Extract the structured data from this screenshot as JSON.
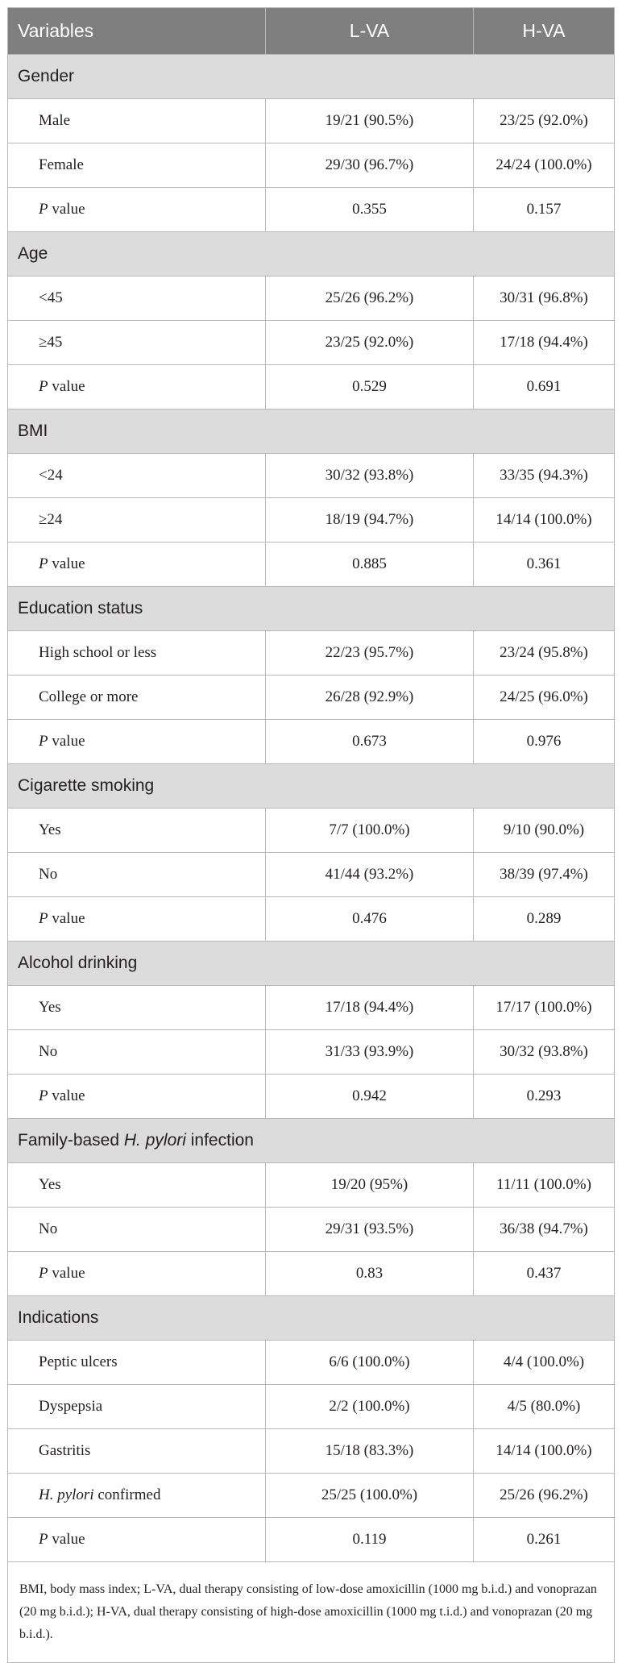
{
  "headers": [
    "Variables",
    "L-VA",
    "H-VA"
  ],
  "groups": [
    {
      "title": "Gender",
      "rows": [
        {
          "label": "Male",
          "lva": "19/21 (90.5%)",
          "hva": "23/25 (92.0%)"
        },
        {
          "label": "Female",
          "lva": "29/30 (96.7%)",
          "hva": "24/24 (100.0%)"
        },
        {
          "label_italic": "P",
          "label_rest": " value",
          "lva": "0.355",
          "hva": "0.157"
        }
      ]
    },
    {
      "title": "Age",
      "rows": [
        {
          "label": "<45",
          "lva": "25/26 (96.2%)",
          "hva": "30/31 (96.8%)"
        },
        {
          "label": "≥45",
          "lva": "23/25 (92.0%)",
          "hva": "17/18 (94.4%)"
        },
        {
          "label_italic": "P",
          "label_rest": " value",
          "lva": "0.529",
          "hva": "0.691"
        }
      ]
    },
    {
      "title": "BMI",
      "rows": [
        {
          "label": "<24",
          "lva": "30/32 (93.8%)",
          "hva": "33/35 (94.3%)"
        },
        {
          "label": "≥24",
          "lva": "18/19 (94.7%)",
          "hva": "14/14 (100.0%)"
        },
        {
          "label_italic": "P",
          "label_rest": " value",
          "lva": "0.885",
          "hva": "0.361"
        }
      ]
    },
    {
      "title": "Education status",
      "rows": [
        {
          "label": "High school or less",
          "lva": "22/23 (95.7%)",
          "hva": "23/24 (95.8%)"
        },
        {
          "label": "College or more",
          "lva": "26/28 (92.9%)",
          "hva": "24/25 (96.0%)"
        },
        {
          "label_italic": "P",
          "label_rest": " value",
          "lva": "0.673",
          "hva": "0.976"
        }
      ]
    },
    {
      "title": "Cigarette smoking",
      "rows": [
        {
          "label": "Yes",
          "lva": "7/7 (100.0%)",
          "hva": "9/10 (90.0%)"
        },
        {
          "label": "No",
          "lva": "41/44 (93.2%)",
          "hva": "38/39 (97.4%)"
        },
        {
          "label_italic": "P",
          "label_rest": " value",
          "lva": "0.476",
          "hva": "0.289"
        }
      ]
    },
    {
      "title": "Alcohol drinking",
      "rows": [
        {
          "label": "Yes",
          "lva": "17/18 (94.4%)",
          "hva": "17/17 (100.0%)"
        },
        {
          "label": "No",
          "lva": "31/33 (93.9%)",
          "hva": "30/32 (93.8%)"
        },
        {
          "label_italic": "P",
          "label_rest": " value",
          "lva": "0.942",
          "hva": "0.293"
        }
      ]
    },
    {
      "title_pre": "Family-based ",
      "title_italic": "H. pylori",
      "title_post": " infection",
      "rows": [
        {
          "label": "Yes",
          "lva": "19/20 (95%)",
          "hva": "11/11 (100.0%)"
        },
        {
          "label": "No",
          "lva": "29/31 (93.5%)",
          "hva": "36/38 (94.7%)"
        },
        {
          "label_italic": "P",
          "label_rest": " value",
          "lva": "0.83",
          "hva": "0.437"
        }
      ]
    },
    {
      "title": "Indications",
      "rows": [
        {
          "label": "Peptic ulcers",
          "lva": "6/6 (100.0%)",
          "hva": "4/4 (100.0%)"
        },
        {
          "label": "Dyspepsia",
          "lva": "2/2 (100.0%)",
          "hva": "4/5 (80.0%)"
        },
        {
          "label": "Gastritis",
          "lva": "15/18 (83.3%)",
          "hva": "14/14 (100.0%)"
        },
        {
          "label_italic": "H. pylori",
          "label_rest": " confirmed",
          "lva": "25/25 (100.0%)",
          "hva": "25/26 (96.2%)"
        },
        {
          "label_italic": "P",
          "label_rest": " value",
          "lva": "0.119",
          "hva": "0.261"
        }
      ]
    }
  ],
  "footnote": "BMI, body mass index; L-VA, dual therapy consisting of low-dose amoxicillin (1000 mg b.i.d.) and vonoprazan (20 mg b.i.d.); H-VA, dual therapy consisting of high-dose amoxicillin (1000 mg t.i.d.) and vonoprazan (20 mg b.i.d.)."
}
